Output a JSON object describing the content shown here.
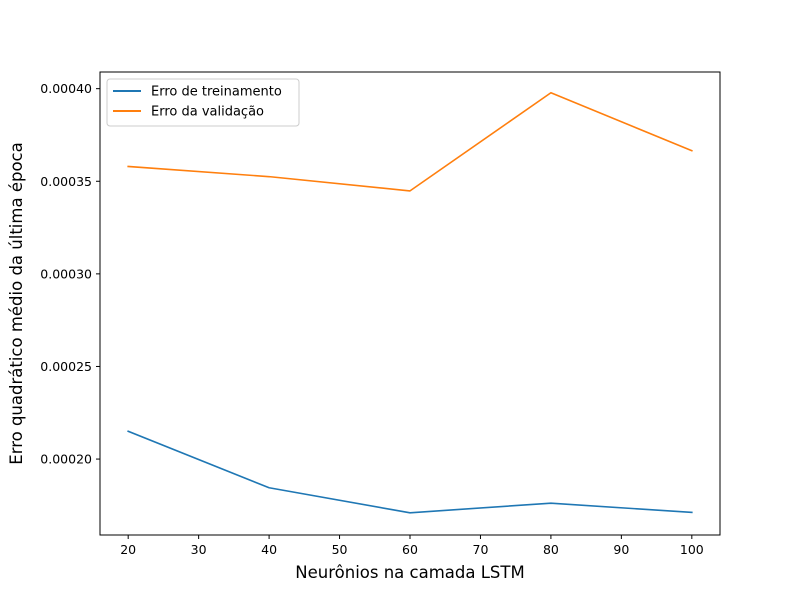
{
  "chart_data": {
    "type": "line",
    "title": "",
    "xlabel": "Neurônios na camada LSTM",
    "ylabel": "Erro quadrático médio da última época",
    "x": [
      20,
      40,
      60,
      80,
      100
    ],
    "xlim": [
      16,
      104
    ],
    "ylim": [
      0.000159,
      0.000409
    ],
    "xticks": [
      20,
      30,
      40,
      50,
      60,
      70,
      80,
      90,
      100
    ],
    "yticks": [
      0.0002,
      0.00025,
      0.0003,
      0.00035,
      0.0004
    ],
    "ytick_labels": [
      "0.00020",
      "0.00025",
      "0.00030",
      "0.00035",
      "0.00040"
    ],
    "grid": false,
    "legend_position": "upper-left",
    "series": [
      {
        "name": "Erro de treinamento",
        "color": "#1f77b4",
        "values": [
          0.000215,
          0.0001845,
          0.000171,
          0.0001762,
          0.0001712
        ]
      },
      {
        "name": "Erro da validação",
        "color": "#ff7f0e",
        "values": [
          0.000358,
          0.0003525,
          0.0003448,
          0.0003978,
          0.0003665
        ]
      }
    ]
  }
}
